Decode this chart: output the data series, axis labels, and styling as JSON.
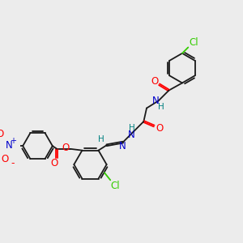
{
  "background_color": "#ececec",
  "bond_color": "#1a1a1a",
  "atom_colors": {
    "O": "#ff0000",
    "N": "#0000cc",
    "Cl": "#33cc00",
    "H": "#008080",
    "C": "#1a1a1a"
  },
  "figsize": [
    3.0,
    3.0
  ],
  "dpi": 100
}
